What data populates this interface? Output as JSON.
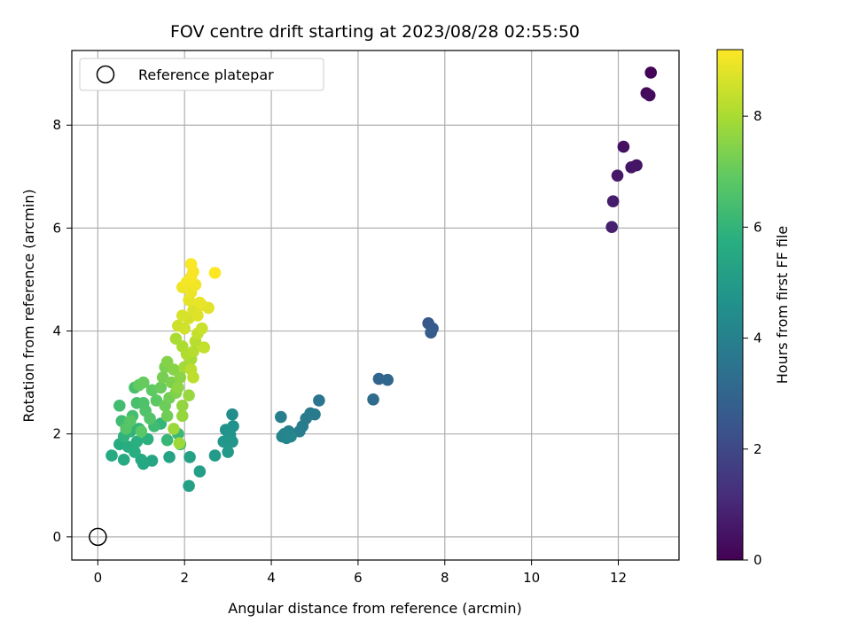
{
  "chart_data": {
    "type": "scatter",
    "title": "FOV centre drift starting at 2023/08/28 02:55:50",
    "xlabel": "Angular distance from reference (arcmin)",
    "ylabel": "Rotation from reference (arcmin)",
    "xlim": [
      -0.6,
      13.4
    ],
    "ylim": [
      -0.45,
      9.45
    ],
    "x_ticks": [
      0,
      2,
      4,
      6,
      8,
      10,
      12
    ],
    "y_ticks": [
      0,
      2,
      4,
      6,
      8
    ],
    "grid": true,
    "colormap": "viridis",
    "legend": {
      "location": "upper-left",
      "entries": [
        "Reference platepar"
      ]
    },
    "reference_point": {
      "label": "Reference platepar",
      "x": 0,
      "y": 0
    },
    "colorbar": {
      "label": "Hours from first FF file",
      "min": 0,
      "max": 9.2,
      "ticks": [
        0,
        2,
        4,
        6,
        8
      ]
    },
    "points": [
      {
        "x": 12.75,
        "y": 9.02,
        "c": 0.1
      },
      {
        "x": 12.65,
        "y": 8.62,
        "c": 0.2
      },
      {
        "x": 12.72,
        "y": 8.58,
        "c": 0.25
      },
      {
        "x": 12.12,
        "y": 7.58,
        "c": 0.4
      },
      {
        "x": 12.42,
        "y": 7.22,
        "c": 0.5
      },
      {
        "x": 12.3,
        "y": 7.18,
        "c": 0.55
      },
      {
        "x": 11.98,
        "y": 7.02,
        "c": 0.6
      },
      {
        "x": 11.88,
        "y": 6.52,
        "c": 0.7
      },
      {
        "x": 11.85,
        "y": 6.02,
        "c": 0.8
      },
      {
        "x": 7.62,
        "y": 4.15,
        "c": 2.5
      },
      {
        "x": 7.72,
        "y": 4.05,
        "c": 2.6
      },
      {
        "x": 7.68,
        "y": 3.97,
        "c": 2.65
      },
      {
        "x": 6.48,
        "y": 3.07,
        "c": 3.0
      },
      {
        "x": 6.68,
        "y": 3.05,
        "c": 3.05
      },
      {
        "x": 6.35,
        "y": 2.67,
        "c": 3.2
      },
      {
        "x": 5.1,
        "y": 2.65,
        "c": 3.6
      },
      {
        "x": 4.9,
        "y": 2.4,
        "c": 3.7
      },
      {
        "x": 5.0,
        "y": 2.38,
        "c": 3.75
      },
      {
        "x": 4.8,
        "y": 2.3,
        "c": 3.8
      },
      {
        "x": 4.72,
        "y": 2.15,
        "c": 3.85
      },
      {
        "x": 4.65,
        "y": 2.05,
        "c": 3.9
      },
      {
        "x": 4.22,
        "y": 2.33,
        "c": 3.95
      },
      {
        "x": 4.4,
        "y": 2.05,
        "c": 4.0
      },
      {
        "x": 4.3,
        "y": 2.0,
        "c": 4.05
      },
      {
        "x": 4.25,
        "y": 1.95,
        "c": 4.1
      },
      {
        "x": 4.35,
        "y": 1.92,
        "c": 4.15
      },
      {
        "x": 4.45,
        "y": 1.95,
        "c": 4.2
      },
      {
        "x": 3.1,
        "y": 2.38,
        "c": 4.5
      },
      {
        "x": 3.12,
        "y": 2.15,
        "c": 4.6
      },
      {
        "x": 2.95,
        "y": 2.08,
        "c": 4.65
      },
      {
        "x": 3.05,
        "y": 1.98,
        "c": 4.7
      },
      {
        "x": 2.98,
        "y": 1.88,
        "c": 4.75
      },
      {
        "x": 3.1,
        "y": 1.85,
        "c": 4.8
      },
      {
        "x": 2.9,
        "y": 1.85,
        "c": 4.85
      },
      {
        "x": 3.0,
        "y": 1.65,
        "c": 4.9
      },
      {
        "x": 2.7,
        "y": 1.58,
        "c": 5.0
      },
      {
        "x": 2.35,
        "y": 1.27,
        "c": 5.1
      },
      {
        "x": 2.1,
        "y": 0.99,
        "c": 5.2
      },
      {
        "x": 2.12,
        "y": 1.55,
        "c": 5.25
      },
      {
        "x": 1.65,
        "y": 1.55,
        "c": 5.3
      },
      {
        "x": 1.25,
        "y": 1.48,
        "c": 5.4
      },
      {
        "x": 1.05,
        "y": 1.42,
        "c": 5.45
      },
      {
        "x": 1.0,
        "y": 1.5,
        "c": 5.5
      },
      {
        "x": 0.6,
        "y": 1.5,
        "c": 5.55
      },
      {
        "x": 0.32,
        "y": 1.58,
        "c": 5.6
      },
      {
        "x": 0.5,
        "y": 1.8,
        "c": 5.65
      },
      {
        "x": 0.7,
        "y": 1.75,
        "c": 5.7
      },
      {
        "x": 0.85,
        "y": 1.65,
        "c": 5.75
      },
      {
        "x": 0.9,
        "y": 1.85,
        "c": 5.8
      },
      {
        "x": 1.15,
        "y": 1.9,
        "c": 5.85
      },
      {
        "x": 0.6,
        "y": 1.95,
        "c": 5.9
      },
      {
        "x": 0.75,
        "y": 2.05,
        "c": 5.95
      },
      {
        "x": 0.95,
        "y": 2.1,
        "c": 6.0
      },
      {
        "x": 1.45,
        "y": 2.2,
        "c": 6.05
      },
      {
        "x": 1.6,
        "y": 1.88,
        "c": 6.1
      },
      {
        "x": 1.85,
        "y": 2.0,
        "c": 6.15
      },
      {
        "x": 1.9,
        "y": 1.8,
        "c": 6.2
      },
      {
        "x": 1.3,
        "y": 2.15,
        "c": 6.25
      },
      {
        "x": 0.55,
        "y": 2.25,
        "c": 6.3
      },
      {
        "x": 0.5,
        "y": 2.55,
        "c": 6.35
      },
      {
        "x": 0.8,
        "y": 2.35,
        "c": 6.4
      },
      {
        "x": 0.9,
        "y": 2.6,
        "c": 6.45
      },
      {
        "x": 0.85,
        "y": 2.9,
        "c": 6.5
      },
      {
        "x": 1.05,
        "y": 2.6,
        "c": 6.55
      },
      {
        "x": 1.1,
        "y": 2.45,
        "c": 6.6
      },
      {
        "x": 1.2,
        "y": 2.3,
        "c": 6.65
      },
      {
        "x": 0.65,
        "y": 2.1,
        "c": 6.7
      },
      {
        "x": 0.75,
        "y": 2.25,
        "c": 6.75
      },
      {
        "x": 1.0,
        "y": 2.05,
        "c": 6.8
      },
      {
        "x": 1.35,
        "y": 2.65,
        "c": 6.85
      },
      {
        "x": 1.25,
        "y": 2.85,
        "c": 6.9
      },
      {
        "x": 0.95,
        "y": 2.95,
        "c": 6.95
      },
      {
        "x": 1.05,
        "y": 3.0,
        "c": 7.0
      },
      {
        "x": 1.45,
        "y": 2.9,
        "c": 7.05
      },
      {
        "x": 1.55,
        "y": 2.55,
        "c": 7.1
      },
      {
        "x": 1.6,
        "y": 2.35,
        "c": 7.15
      },
      {
        "x": 1.65,
        "y": 2.7,
        "c": 7.2
      },
      {
        "x": 1.5,
        "y": 3.1,
        "c": 7.25
      },
      {
        "x": 1.55,
        "y": 3.3,
        "c": 7.3
      },
      {
        "x": 1.7,
        "y": 3.0,
        "c": 7.35
      },
      {
        "x": 1.8,
        "y": 2.8,
        "c": 7.4
      },
      {
        "x": 1.6,
        "y": 3.4,
        "c": 7.45
      },
      {
        "x": 1.75,
        "y": 3.25,
        "c": 7.5
      },
      {
        "x": 1.9,
        "y": 3.1,
        "c": 7.55
      },
      {
        "x": 1.85,
        "y": 2.9,
        "c": 7.6
      },
      {
        "x": 1.95,
        "y": 2.55,
        "c": 7.65
      },
      {
        "x": 1.95,
        "y": 2.35,
        "c": 7.7
      },
      {
        "x": 2.1,
        "y": 2.75,
        "c": 7.75
      },
      {
        "x": 1.75,
        "y": 2.1,
        "c": 7.8
      },
      {
        "x": 1.88,
        "y": 1.82,
        "c": 7.85
      },
      {
        "x": 2.0,
        "y": 3.3,
        "c": 7.9
      },
      {
        "x": 2.15,
        "y": 3.45,
        "c": 7.95
      },
      {
        "x": 1.8,
        "y": 3.85,
        "c": 8.0
      },
      {
        "x": 1.95,
        "y": 3.7,
        "c": 8.05
      },
      {
        "x": 2.05,
        "y": 3.55,
        "c": 8.1
      },
      {
        "x": 2.2,
        "y": 3.6,
        "c": 8.15
      },
      {
        "x": 2.25,
        "y": 3.8,
        "c": 8.2
      },
      {
        "x": 2.15,
        "y": 3.25,
        "c": 8.25
      },
      {
        "x": 2.2,
        "y": 3.1,
        "c": 8.3
      },
      {
        "x": 2.45,
        "y": 3.68,
        "c": 8.35
      },
      {
        "x": 2.3,
        "y": 3.95,
        "c": 8.4
      },
      {
        "x": 2.4,
        "y": 4.05,
        "c": 8.45
      },
      {
        "x": 1.85,
        "y": 4.1,
        "c": 8.5
      },
      {
        "x": 2.0,
        "y": 4.05,
        "c": 8.55
      },
      {
        "x": 2.1,
        "y": 4.25,
        "c": 8.6
      },
      {
        "x": 1.95,
        "y": 4.3,
        "c": 8.65
      },
      {
        "x": 2.2,
        "y": 4.4,
        "c": 8.7
      },
      {
        "x": 2.3,
        "y": 4.3,
        "c": 8.75
      },
      {
        "x": 2.55,
        "y": 4.45,
        "c": 8.78
      },
      {
        "x": 2.4,
        "y": 4.5,
        "c": 8.82
      },
      {
        "x": 2.1,
        "y": 4.6,
        "c": 8.86
      },
      {
        "x": 2.35,
        "y": 4.55,
        "c": 8.9
      },
      {
        "x": 2.15,
        "y": 4.75,
        "c": 8.95
      },
      {
        "x": 1.95,
        "y": 4.85,
        "c": 9.0
      },
      {
        "x": 2.25,
        "y": 4.9,
        "c": 9.03
      },
      {
        "x": 2.05,
        "y": 4.95,
        "c": 9.06
      },
      {
        "x": 2.15,
        "y": 5.05,
        "c": 9.1
      },
      {
        "x": 2.2,
        "y": 5.15,
        "c": 9.13
      },
      {
        "x": 2.15,
        "y": 5.3,
        "c": 9.16
      },
      {
        "x": 2.7,
        "y": 5.13,
        "c": 9.2
      }
    ]
  }
}
